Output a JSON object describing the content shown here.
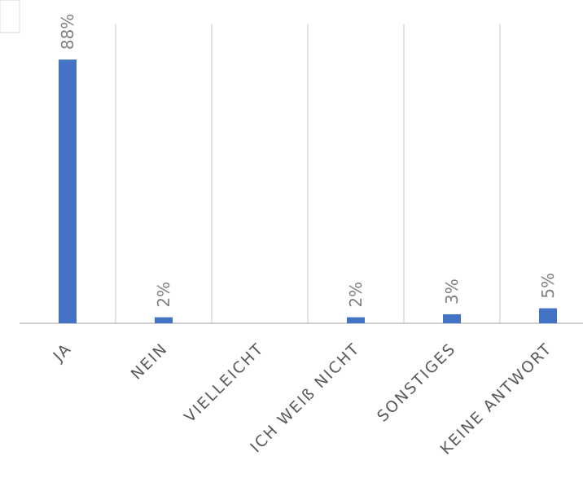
{
  "chart_data": {
    "type": "bar",
    "categories": [
      "JA",
      "NEIN",
      "VIELLEICHT",
      "ICH WEIß NICHT",
      "SONSTIGES",
      "KEINE ANTWORT"
    ],
    "values": [
      88,
      2,
      0,
      2,
      3,
      5
    ],
    "data_labels": [
      "88%",
      "2%",
      "",
      "2%",
      "3%",
      "5%"
    ],
    "ylim": [
      0,
      100
    ],
    "grid": "vertical",
    "legend": "none",
    "title": "",
    "xlabel": "",
    "ylabel": "",
    "colors": {
      "bar": "#4472c4",
      "grid": "#d9d9d9",
      "axis": "#bfbfbf",
      "tick_text": "#595959",
      "label_text": "#7f7f7f"
    }
  }
}
